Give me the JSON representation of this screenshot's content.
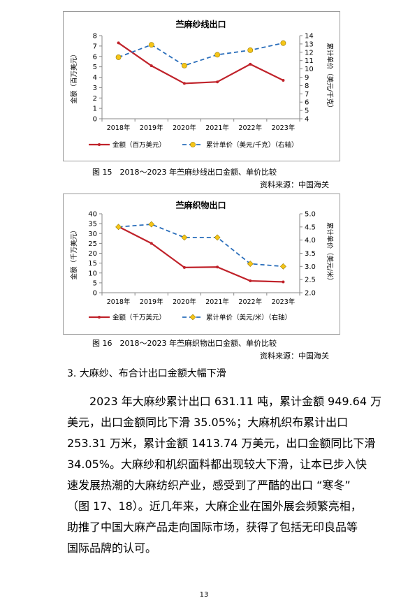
{
  "chart_data": [
    {
      "type": "line",
      "title": "苎麻纱线出口",
      "categories": [
        "2018年",
        "2019年",
        "2020年",
        "2021年",
        "2022年",
        "2023年"
      ],
      "ylabel": "金额（百万美元）",
      "ylabel_right": "累计单价（美元/千克）",
      "ylim": [
        0,
        8
      ],
      "ylim_right": [
        4,
        14
      ],
      "yticks": [
        "0",
        "1",
        "2",
        "3",
        "4",
        "5",
        "6",
        "7",
        "8"
      ],
      "yticks_right": [
        "4",
        "5",
        "6",
        "7",
        "8",
        "9",
        "10",
        "11",
        "12",
        "13",
        "14"
      ],
      "series": [
        {
          "name": "金额（百万美元）",
          "axis": "left",
          "color": "#c0222a",
          "style": "solid",
          "values": [
            7.3,
            5.1,
            3.4,
            3.55,
            5.25,
            3.7
          ]
        },
        {
          "name": "累计单价（美元/千克）（右轴）",
          "axis": "right",
          "color": "#2a6ebb",
          "style": "dashed",
          "marker_color": "#f5c518",
          "marker": "circle",
          "values": [
            11.4,
            12.9,
            10.4,
            11.7,
            12.25,
            13.1
          ]
        }
      ],
      "grid": false,
      "legend": "bottom"
    },
    {
      "type": "line",
      "title": "苎麻织物出口",
      "categories": [
        "2018年",
        "2019年",
        "2020年",
        "2021年",
        "2022年",
        "2023年"
      ],
      "ylabel": "金额（千万美元）",
      "ylabel_right": "累计单价（美元/米）",
      "ylim": [
        0,
        40
      ],
      "ylim_right": [
        2.0,
        5.0
      ],
      "yticks": [
        "0",
        "5",
        "10",
        "15",
        "20",
        "25",
        "30",
        "35",
        "40"
      ],
      "yticks_right": [
        "2.0",
        "2.5",
        "3.0",
        "3.5",
        "4.0",
        "4.5",
        "5.0"
      ],
      "series": [
        {
          "name": "金额（千万美元）",
          "axis": "left",
          "color": "#c0222a",
          "style": "solid",
          "values": [
            33.5,
            25,
            12.8,
            13,
            6,
            5.5
          ]
        },
        {
          "name": "累计单价（美元/米）（右轴）",
          "axis": "right",
          "color": "#2a6ebb",
          "style": "dashed",
          "marker_color": "#f5c518",
          "marker": "diamond",
          "values": [
            4.5,
            4.6,
            4.1,
            4.1,
            3.1,
            3.0
          ]
        }
      ],
      "grid": false,
      "legend": "bottom"
    }
  ],
  "captions": {
    "fig15": "图 15　2018～2023 年苎麻纱线出口金额、单价比较",
    "fig15_source": "资料来源：中国海关",
    "fig16": "图 16　2018～2023 年苎麻织物出口金额、单价比较",
    "fig16_source": "资料来源：中国海关"
  },
  "section_title": "3. 大麻纱、布合计出口金额大幅下滑",
  "paragraph_lines": [
    "　　2023 年大麻纱累计出口 631.11 吨，累计金额 949.64 万",
    "美元，出口金额同比下滑 35.05%；大麻机织布累计出口",
    "253.31 万米，累计金额 1413.74 万美元，出口金额同比下滑",
    "34.05%。大麻纱和机织面料都出现较大下滑，让本已步入快",
    "速发展热潮的大麻纺织产业，感受到了严酷的出口 “寒冬”",
    "（图 17、18）。近几年来，大麻企业在国外展会频繁亮相，",
    "助推了中国大麻产品走向国际市场，获得了包括无印良品等",
    "国际品牌的认可。"
  ],
  "page_number": "13"
}
